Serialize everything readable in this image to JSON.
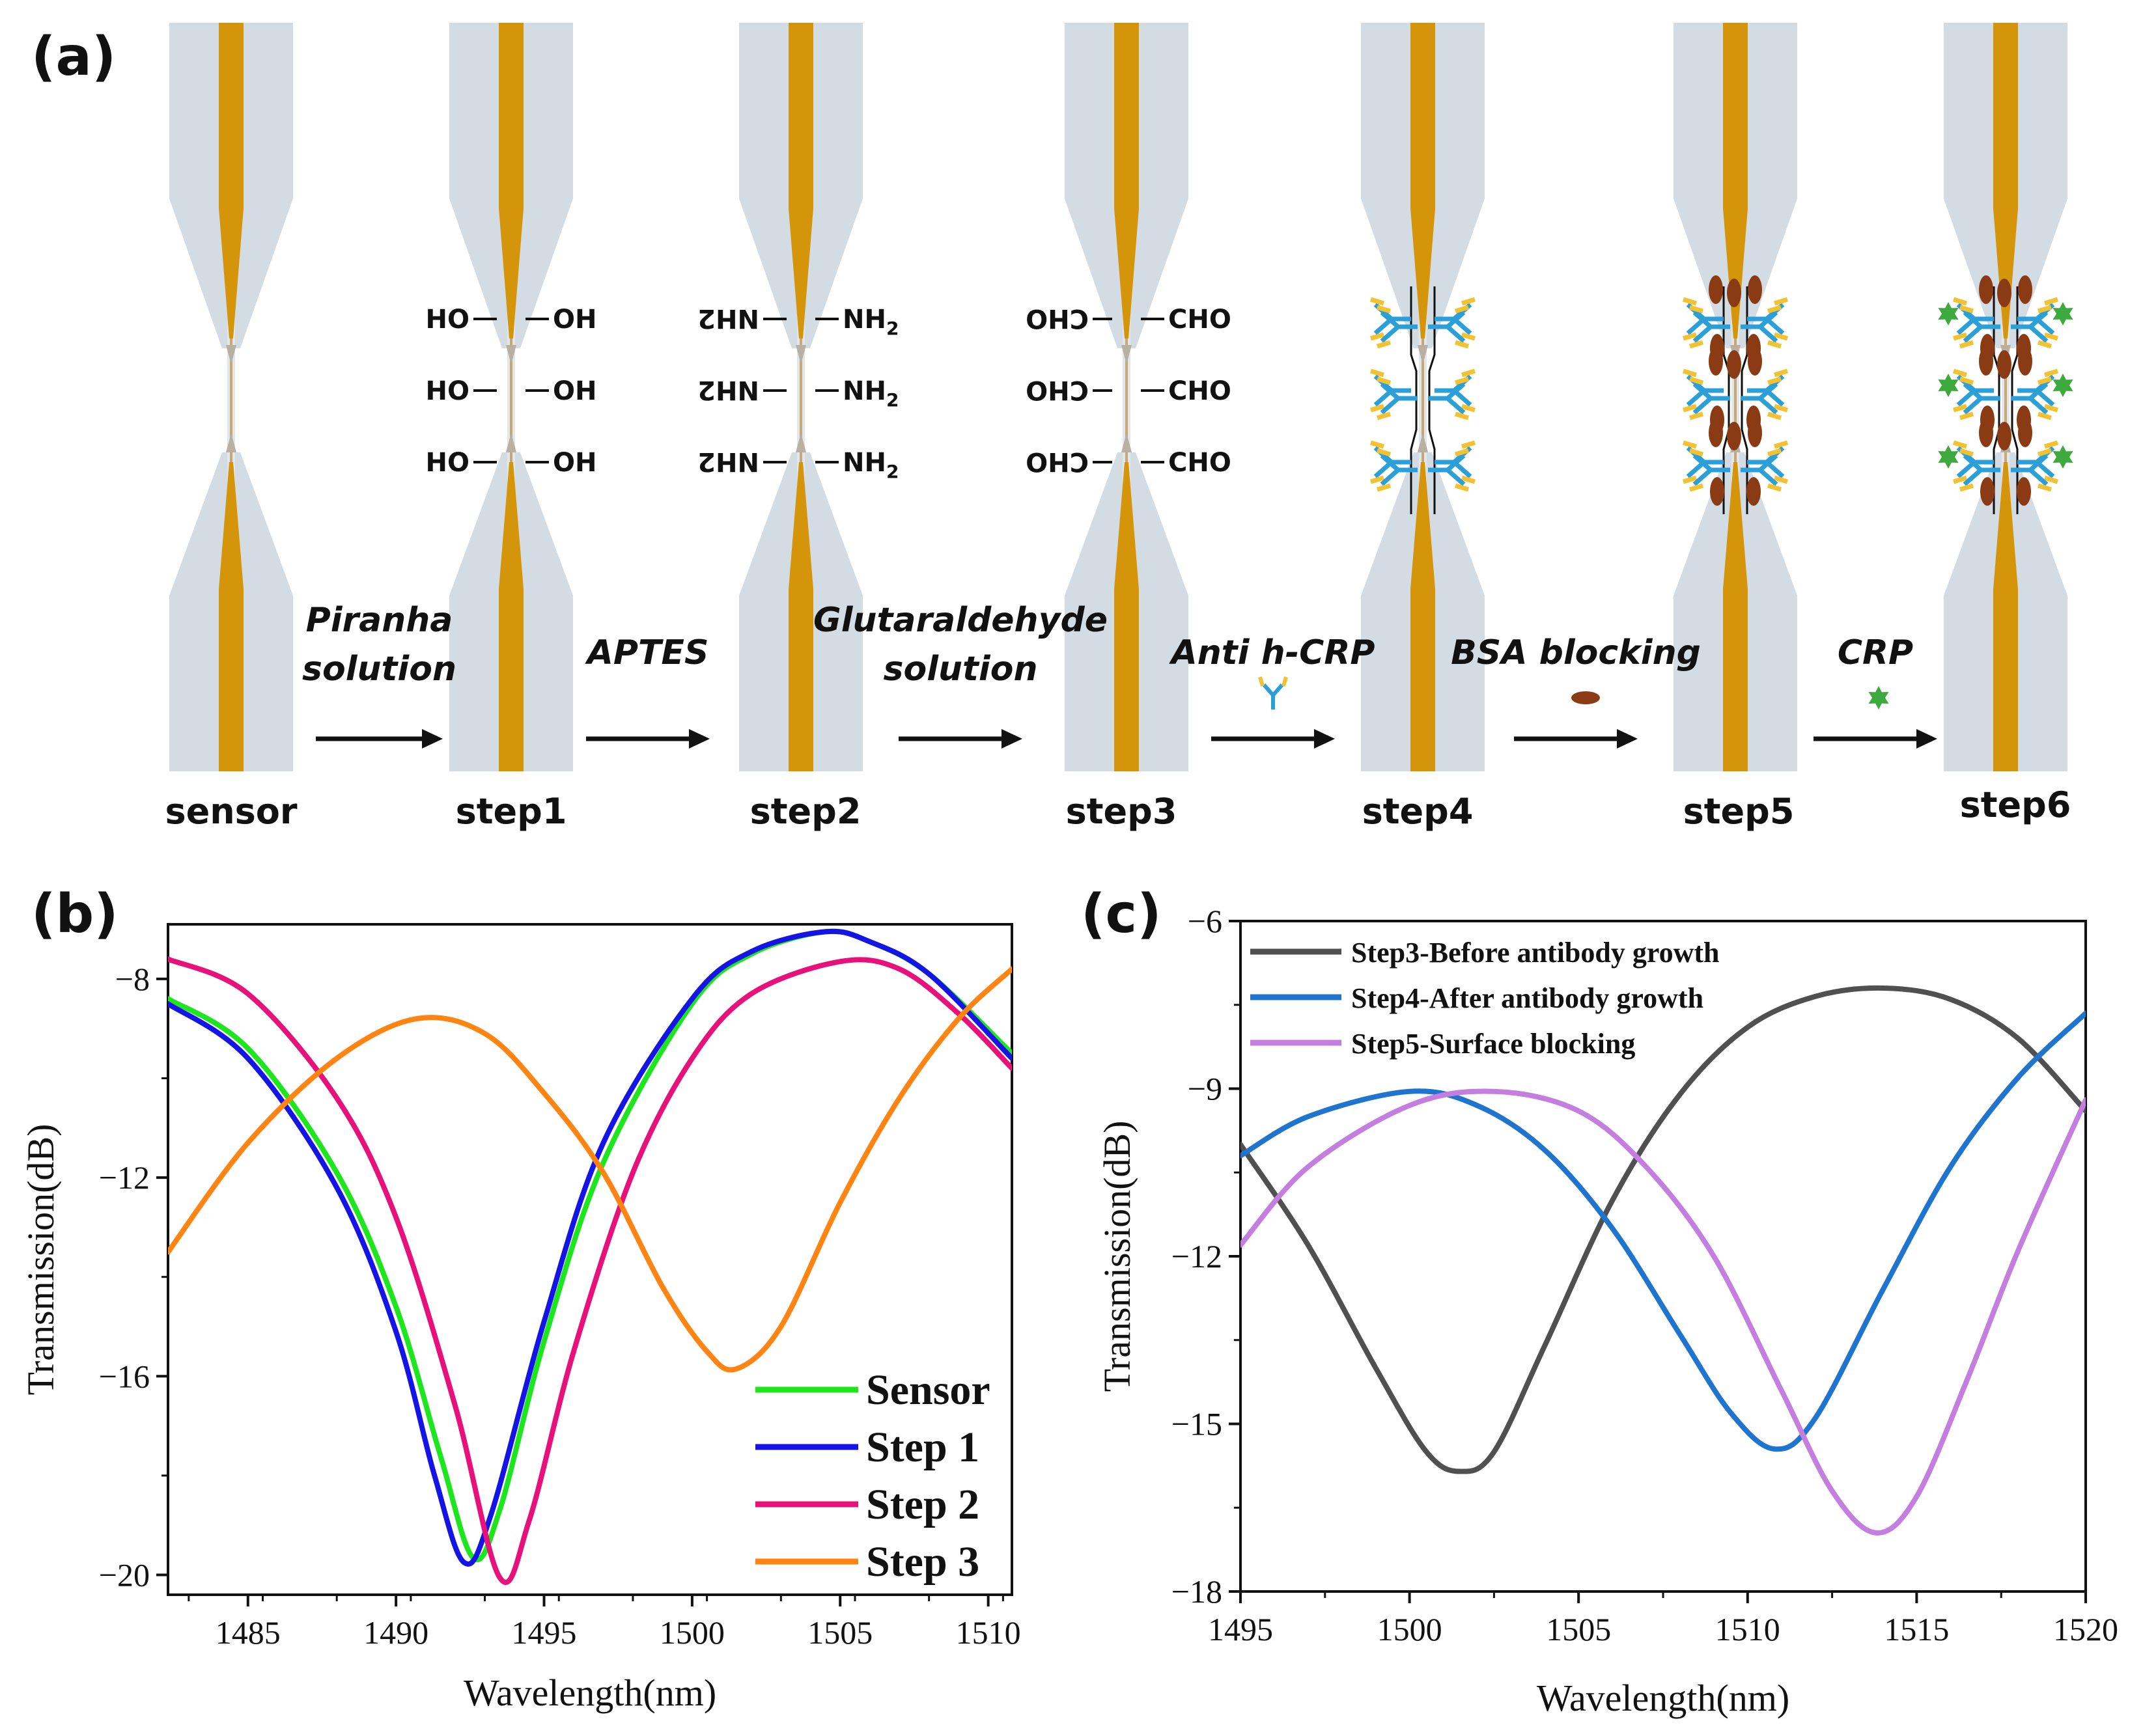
{
  "panel_a": {
    "label": "(a)",
    "steps": [
      "sensor",
      "step1",
      "step2",
      "step3",
      "step4",
      "step5",
      "step6"
    ],
    "reagents": [
      {
        "line1": "Piranha",
        "line2": "solution"
      },
      {
        "line1": "APTES",
        "line2": ""
      },
      {
        "line1": "Glutaraldehyde",
        "line2": "solution"
      },
      {
        "line1": "Anti h-CRP",
        "line2": ""
      },
      {
        "line1": "BSA blocking",
        "line2": ""
      },
      {
        "line1": "CRP",
        "line2": ""
      }
    ],
    "groups": {
      "hydroxyl": "OH",
      "hydroxyl_left": "HO",
      "amine": "NH",
      "amine_sub": "2",
      "aldehyde": "CHO"
    },
    "colors": {
      "fiber_core": "#d4950a",
      "cladding": "#d3dbe3",
      "antibody_blue": "#2a9fd8",
      "antibody_yellow": "#f2c230",
      "bsa": "#8a3b14",
      "crp": "#3caa3c"
    }
  },
  "chart_data": [
    {
      "panel": "(b)",
      "type": "line",
      "xlabel": "Wavelength(nm)",
      "ylabel": "Transmission(dB)",
      "xlim": [
        1482.3,
        1510.8
      ],
      "ylim": [
        -20.4,
        -6.9
      ],
      "xticks": [
        1485,
        1490,
        1495,
        1500,
        1505,
        1510
      ],
      "yticks": [
        -8,
        -12,
        -16,
        -20
      ],
      "xtick_labels": [
        "1485",
        "1490",
        "1495",
        "1500",
        "1505",
        "1510"
      ],
      "ytick_labels": [
        "−8",
        "−12",
        "−16",
        "−20"
      ],
      "legend_position": "bottom-right",
      "series": [
        {
          "name": "Sensor",
          "color": "#1ee61e",
          "x": [
            1482.3,
            1485,
            1488,
            1490,
            1491.5,
            1492.6,
            1493.5,
            1495,
            1497,
            1500,
            1502,
            1504.5,
            1506,
            1508,
            1510.8
          ],
          "values": [
            -8.4,
            -9.4,
            -11.9,
            -14.6,
            -17.6,
            -19.65,
            -18.7,
            -15.3,
            -11.7,
            -8.5,
            -7.5,
            -7.05,
            -7.25,
            -7.9,
            -9.5
          ]
        },
        {
          "name": "Step 1",
          "color": "#1414e6",
          "x": [
            1482.3,
            1485,
            1488,
            1490,
            1491.3,
            1492.3,
            1493.2,
            1495,
            1497,
            1500,
            1502,
            1504.5,
            1506,
            1508,
            1510.8
          ],
          "values": [
            -8.5,
            -9.6,
            -12.2,
            -15.1,
            -18.0,
            -19.75,
            -18.8,
            -14.9,
            -11.3,
            -8.4,
            -7.45,
            -7.05,
            -7.25,
            -7.9,
            -9.6
          ]
        },
        {
          "name": "Step 2",
          "color": "#e8107a",
          "x": [
            1482.3,
            1485,
            1488,
            1490,
            1492,
            1493.5,
            1494.5,
            1496,
            1498,
            1500,
            1502,
            1505,
            1507,
            1509,
            1510.8
          ],
          "values": [
            -7.6,
            -8.3,
            -10.4,
            -12.8,
            -16.6,
            -20.05,
            -18.9,
            -15.5,
            -11.9,
            -9.6,
            -8.3,
            -7.65,
            -7.8,
            -8.7,
            -9.8
          ]
        },
        {
          "name": "Step 3",
          "color": "#ff8412",
          "x": [
            1482.3,
            1485,
            1488,
            1490.7,
            1493,
            1495,
            1497,
            1499,
            1500.5,
            1501.5,
            1503,
            1505,
            1507,
            1509,
            1510.8
          ],
          "values": [
            -13.5,
            -11.3,
            -9.6,
            -8.8,
            -9.1,
            -10.3,
            -11.9,
            -14.2,
            -15.5,
            -15.85,
            -15.0,
            -12.5,
            -10.4,
            -8.8,
            -7.8
          ]
        }
      ]
    },
    {
      "panel": "(c)",
      "type": "line",
      "xlabel": "Wavelength(nm)",
      "ylabel": "Transmission(dB)",
      "xlim": [
        1495,
        1520
      ],
      "ylim": [
        -18,
        -6
      ],
      "xticks": [
        1495,
        1500,
        1505,
        1510,
        1515,
        1520
      ],
      "yticks": [
        -6,
        -9,
        -12,
        -15,
        -18
      ],
      "xtick_labels": [
        "1495",
        "1500",
        "1505",
        "1510",
        "1515",
        "1520"
      ],
      "ytick_labels": [
        "−6",
        "−9",
        "−12",
        "−15",
        "−18"
      ],
      "legend_position": "top-left",
      "series": [
        {
          "name": "Step3-Before antibody growth",
          "color": "#505050",
          "x": [
            1495,
            1497,
            1499,
            1500.5,
            1501.5,
            1502.5,
            1504,
            1506,
            1508,
            1510,
            1512,
            1514,
            1516,
            1518,
            1520
          ],
          "values": [
            -10.0,
            -11.8,
            -14.0,
            -15.5,
            -15.85,
            -15.5,
            -13.6,
            -11.0,
            -9.1,
            -7.9,
            -7.35,
            -7.2,
            -7.4,
            -8.1,
            -9.4
          ]
        },
        {
          "name": "Step4-After antibody growth",
          "color": "#1f74d0",
          "x": [
            1495,
            1497,
            1500,
            1502,
            1504,
            1506,
            1508,
            1509.5,
            1510.8,
            1512,
            1514,
            1516,
            1518,
            1520
          ],
          "values": [
            -10.2,
            -9.5,
            -9.05,
            -9.3,
            -10.1,
            -11.5,
            -13.4,
            -14.8,
            -15.45,
            -14.9,
            -12.6,
            -10.4,
            -8.8,
            -7.65
          ]
        },
        {
          "name": "Step5-Surface blocking",
          "color": "#c47ee0",
          "x": [
            1495,
            1497,
            1500,
            1502.5,
            1505,
            1507,
            1509,
            1511,
            1512.5,
            1513.8,
            1515,
            1516.5,
            1518,
            1520
          ],
          "values": [
            -11.8,
            -10.4,
            -9.3,
            -9.05,
            -9.4,
            -10.4,
            -12.0,
            -14.4,
            -16.2,
            -16.95,
            -16.3,
            -14.2,
            -11.9,
            -9.2
          ]
        }
      ]
    }
  ]
}
